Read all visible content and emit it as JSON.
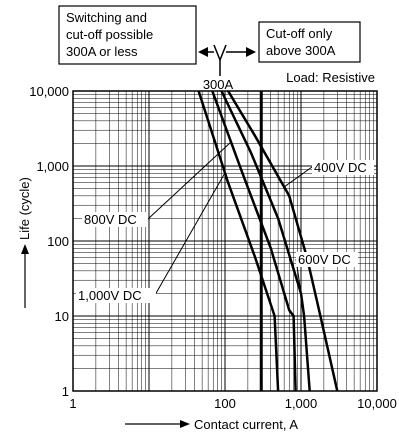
{
  "chart_data": {
    "type": "line",
    "title": "",
    "xlabel": "Contact current, A",
    "ylabel": "Life (cycle)",
    "x_scale": "log",
    "y_scale": "log",
    "xlim": [
      1,
      10000
    ],
    "ylim": [
      1,
      10000
    ],
    "grid": true,
    "x_ticks": [
      "1",
      "100",
      "1,000",
      "10,000"
    ],
    "y_ticks": [
      "1",
      "10",
      "100",
      "1,000",
      "10,000"
    ],
    "annotations": {
      "left_box": [
        "Switching and",
        "cut-off possible",
        "300A or less"
      ],
      "right_box": [
        "Cut-off only",
        "above 300A"
      ],
      "threshold_label": "300A",
      "threshold_x": 300,
      "load": "Load: Resistive"
    },
    "series": [
      {
        "name": "400V DC",
        "points": [
          [
            110,
            10000
          ],
          [
            250,
            2500
          ],
          [
            700,
            400
          ],
          [
            1200,
            60
          ],
          [
            1800,
            10
          ],
          [
            3000,
            1
          ]
        ]
      },
      {
        "name": "600V DC",
        "points": [
          [
            90,
            10000
          ],
          [
            220,
            1500
          ],
          [
            500,
            200
          ],
          [
            1000,
            20
          ],
          [
            1100,
            10
          ],
          [
            1300,
            1
          ]
        ]
      },
      {
        "name": "800V DC",
        "points": [
          [
            68,
            10000
          ],
          [
            170,
            800
          ],
          [
            400,
            80
          ],
          [
            700,
            12
          ],
          [
            800,
            10
          ],
          [
            850,
            1
          ]
        ]
      },
      {
        "name": "1,000V DC",
        "points": [
          [
            45,
            10000
          ],
          [
            110,
            600
          ],
          [
            250,
            60
          ],
          [
            450,
            10
          ],
          [
            500,
            1
          ]
        ]
      }
    ],
    "series_labels": {
      "leader_x": [
        600,
        1000,
        120,
        100
      ]
    }
  }
}
